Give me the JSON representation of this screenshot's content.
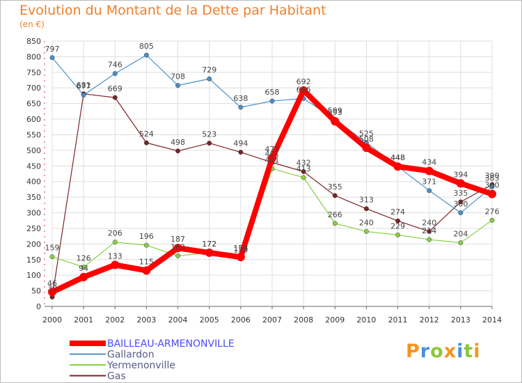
{
  "title": "Evolution du Montant de la Dette par Habitant",
  "unit": "(en €)",
  "logo": {
    "letters": [
      "P",
      "r",
      "o",
      "x",
      "i",
      "t",
      "i"
    ],
    "colors": [
      "#f7941d",
      "#4a90d9",
      "#8dc63f",
      "#f7941d",
      "#4a90d9",
      "#8dc63f",
      "#f7941d"
    ]
  },
  "chart_data": {
    "type": "line",
    "title": "Evolution du Montant de la Dette par Habitant",
    "ylabel": "(en €)",
    "xlabel": "",
    "x": [
      "2000",
      "2001",
      "2002",
      "2003",
      "2004",
      "2005",
      "2006",
      "2007",
      "2008",
      "2009",
      "2010",
      "2011",
      "2012",
      "2013",
      "2014"
    ],
    "ylim": [
      0,
      850
    ],
    "yticks": [
      "0",
      "50",
      "100",
      "150",
      "200",
      "250",
      "300",
      "350",
      "400",
      "450",
      "500",
      "550",
      "600",
      "650",
      "700",
      "750",
      "800",
      "850"
    ],
    "grid": true,
    "legend": "bottom-left",
    "series": [
      {
        "name": "BAILLEAU-ARMENONVILLE",
        "color": "#ff0000",
        "values": [
          46,
          94,
          133,
          115,
          187,
          172,
          158,
          475,
          692,
          593,
          508,
          448,
          434,
          394,
          360
        ],
        "labels": [
          "46",
          "94",
          "133",
          "115",
          "187",
          "172",
          "158",
          "475",
          "692",
          "593",
          "508",
          "448",
          "434",
          "394",
          "360"
        ]
      },
      {
        "name": "Gallardon",
        "color": "#4a90c8",
        "values": [
          797,
          677,
          746,
          805,
          708,
          729,
          638,
          658,
          666,
          599,
          525,
          448,
          371,
          300,
          383
        ],
        "labels": [
          "797",
          "677",
          "746",
          "805",
          "708",
          "729",
          "638",
          "658",
          "666",
          "599",
          "525",
          "448",
          "371",
          "300",
          "383"
        ]
      },
      {
        "name": "Yermenonville",
        "color": "#88d045",
        "values": [
          159,
          126,
          206,
          196,
          162,
          172,
          153,
          441,
          413,
          266,
          240,
          229,
          214,
          204,
          276
        ],
        "labels": [
          "159",
          "126",
          "206",
          "196",
          "162",
          "172",
          "153",
          "441",
          "413",
          "266",
          "240",
          "229",
          "214",
          "204",
          "276"
        ]
      },
      {
        "name": "Gas",
        "color": "#7a2426",
        "values": [
          30,
          681,
          669,
          524,
          498,
          523,
          494,
          461,
          432,
          355,
          313,
          274,
          240,
          335,
          390
        ],
        "labels": [
          "30",
          "681",
          "669",
          "524",
          "498",
          "523",
          "494",
          "461",
          "432",
          "355",
          "313",
          "274",
          "240",
          "335",
          "390"
        ]
      }
    ]
  }
}
